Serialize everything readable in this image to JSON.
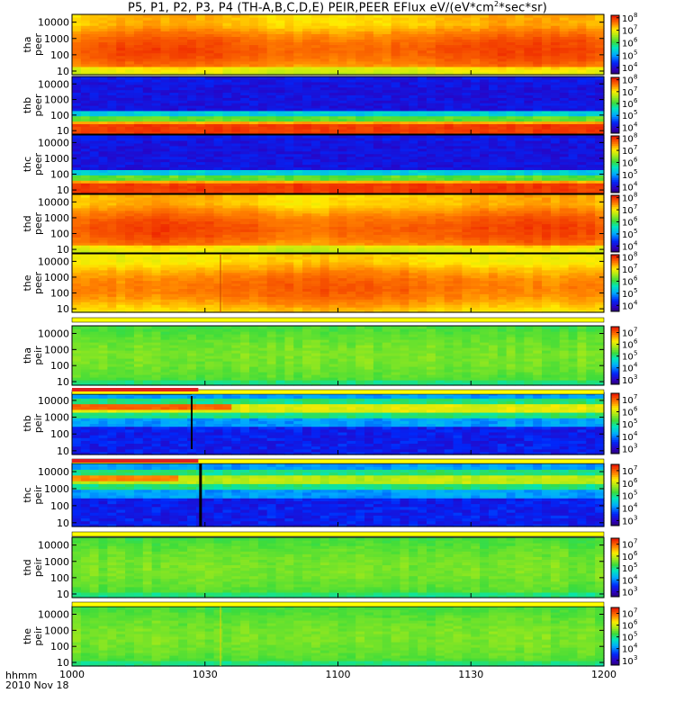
{
  "chart_data": {
    "type": "heatmap",
    "title": {
      "text": "P5, P1, P2, P3, P4 (TH-A,B,C,D,E) PEIR,PEER EFlux eV/(eV*cm",
      "sup": "2",
      "text_end": "*sec*sr)"
    },
    "x_ticks": [
      "1000",
      "1030",
      "1100",
      "1130",
      "1200"
    ],
    "x_tick_minutes": [
      0,
      30,
      60,
      90,
      120
    ],
    "x_range_minutes": [
      0,
      120
    ],
    "x_label": "hhmm",
    "date": "2010 Nov 18",
    "y_ticks": [
      "10",
      "100",
      "1000",
      "10000"
    ],
    "y_scale": "log",
    "y_range": [
      6,
      30000
    ],
    "panels": [
      {
        "label_top": "tha",
        "label_bottom": "peer",
        "colorbar_ticks": [
          "4",
          "5",
          "6",
          "7",
          "8"
        ],
        "cbar_min_exp": 3.5,
        "cbar_max_exp": 8.2,
        "pattern": "peer_a"
      },
      {
        "label_top": "thb",
        "label_bottom": "peer",
        "colorbar_ticks": [
          "4",
          "5",
          "6",
          "7",
          "8"
        ],
        "cbar_min_exp": 3.5,
        "cbar_max_exp": 8.2,
        "pattern": "peer_bc"
      },
      {
        "label_top": "thc",
        "label_bottom": "peer",
        "colorbar_ticks": [
          "4",
          "5",
          "6",
          "7",
          "8"
        ],
        "cbar_min_exp": 3.5,
        "cbar_max_exp": 8.2,
        "pattern": "peer_bc"
      },
      {
        "label_top": "thd",
        "label_bottom": "peer",
        "colorbar_ticks": [
          "4",
          "5",
          "6",
          "7",
          "8"
        ],
        "cbar_min_exp": 3.5,
        "cbar_max_exp": 8.2,
        "pattern": "peer_a"
      },
      {
        "label_top": "the",
        "label_bottom": "peer",
        "colorbar_ticks": [
          "4",
          "5",
          "6",
          "7",
          "8"
        ],
        "cbar_min_exp": 3.5,
        "cbar_max_exp": 8.2,
        "pattern": "peer_e"
      },
      {
        "label_top": "tha",
        "label_bottom": "peir",
        "colorbar_ticks": [
          "3",
          "4",
          "5",
          "6",
          "7"
        ],
        "cbar_min_exp": 2.6,
        "cbar_max_exp": 7.5,
        "pattern": "peir_a"
      },
      {
        "label_top": "thb",
        "label_bottom": "peir",
        "colorbar_ticks": [
          "3",
          "4",
          "5",
          "6",
          "7"
        ],
        "cbar_min_exp": 2.6,
        "cbar_max_exp": 7.5,
        "pattern": "peir_b"
      },
      {
        "label_top": "thc",
        "label_bottom": "peir",
        "colorbar_ticks": [
          "3",
          "4",
          "5",
          "6",
          "7"
        ],
        "cbar_min_exp": 2.6,
        "cbar_max_exp": 7.5,
        "pattern": "peir_c"
      },
      {
        "label_top": "thd",
        "label_bottom": "peir",
        "colorbar_ticks": [
          "3",
          "4",
          "5",
          "6",
          "7"
        ],
        "cbar_min_exp": 2.6,
        "cbar_max_exp": 7.5,
        "pattern": "peir_d"
      },
      {
        "label_top": "the",
        "label_bottom": "peir",
        "colorbar_ticks": [
          "3",
          "4",
          "5",
          "6",
          "7"
        ],
        "cbar_min_exp": 2.6,
        "cbar_max_exp": 7.5,
        "pattern": "peir_e"
      }
    ]
  }
}
